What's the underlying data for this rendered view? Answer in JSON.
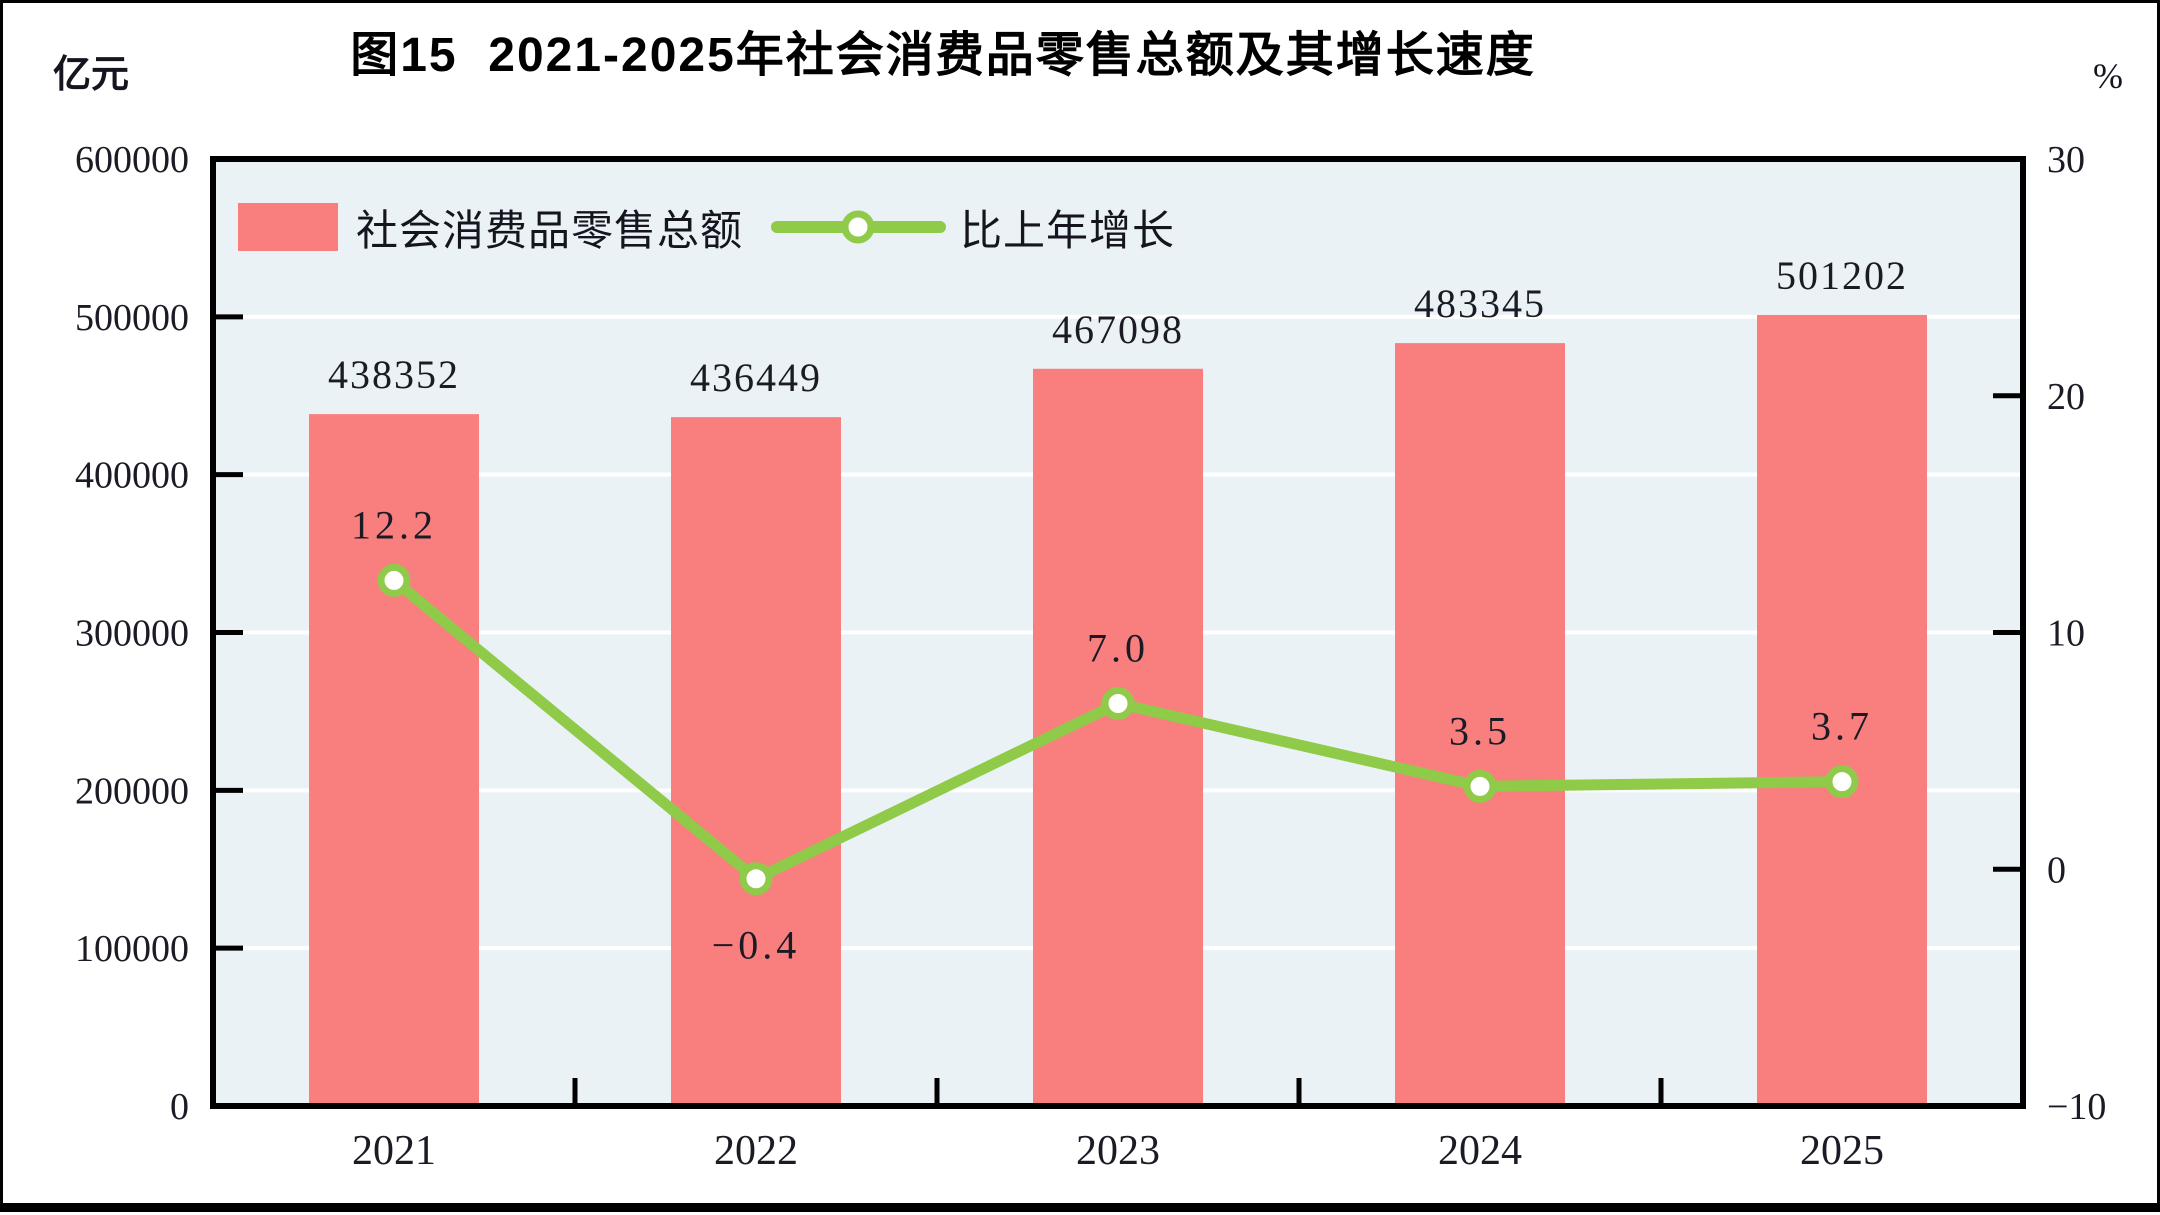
{
  "header": {
    "title": "图15  2021-2025年社会消费品零售总额及其增长速度",
    "left_axis_unit": "亿元",
    "right_axis_unit": "%"
  },
  "legend": {
    "items": [
      {
        "label": "社会消费品零售总额",
        "type": "bar",
        "color": "#f97f7f"
      },
      {
        "label": "比上年增长",
        "type": "line",
        "color": "#8fca48"
      }
    ]
  },
  "chart_data": {
    "type": "combo-bar-line",
    "title": "图15  2021-2025年社会消费品零售总额及其增长速度",
    "categories": [
      "2021",
      "2022",
      "2023",
      "2024",
      "2025"
    ],
    "series": [
      {
        "name": "社会消费品零售总额",
        "type": "bar",
        "axis": "left",
        "color": "#f97f7f",
        "values": [
          438352,
          436449,
          467098,
          483345,
          501202
        ],
        "data_labels": [
          "438352",
          "436449",
          "467098",
          "483345",
          "501202"
        ]
      },
      {
        "name": "比上年增长",
        "type": "line",
        "axis": "right",
        "color": "#8fca48",
        "marker": "open-circle",
        "marker_fill": "#ffffff",
        "values": [
          12.2,
          -0.4,
          7.0,
          3.5,
          3.7
        ],
        "data_labels": [
          "12.2",
          "−0.4",
          "7.0",
          "3.5",
          "3.7"
        ],
        "label_placement": [
          "above",
          "below",
          "above",
          "above",
          "above"
        ]
      }
    ],
    "left_axis": {
      "unit": "亿元",
      "min": 0,
      "max": 600000,
      "step": 100000,
      "tick_labels": [
        "600000",
        "500000",
        "400000",
        "300000",
        "200000",
        "100000",
        "0"
      ]
    },
    "right_axis": {
      "unit": "%",
      "min": -10,
      "max": 30,
      "step": 10,
      "tick_labels": [
        "30",
        "20",
        "10",
        "0",
        "−10"
      ]
    },
    "x_axis": {
      "tick_labels": [
        "2021",
        "2022",
        "2023",
        "2024",
        "2025"
      ]
    },
    "style": {
      "plot_background": "#eaf2f6",
      "gridline_color": "#ffffff",
      "axis_color": "#000000",
      "text_color": "#1b1b26",
      "grid": "horizontal"
    },
    "legend_position": "top-left-inside"
  }
}
